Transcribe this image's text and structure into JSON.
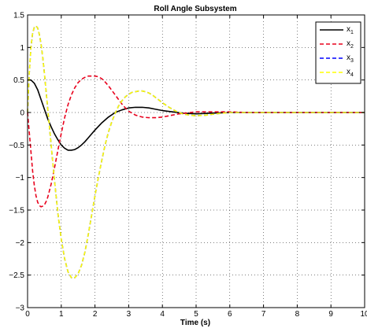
{
  "chart_data": {
    "type": "line",
    "title": "Roll Angle Subsystem",
    "xlabel": "Time (s)",
    "ylabel": "",
    "xlim": [
      0,
      10
    ],
    "ylim": [
      -3,
      1.5
    ],
    "grid": true,
    "legend": "top-right",
    "x_ticks": [
      "0",
      "1",
      "2",
      "3",
      "4",
      "5",
      "6",
      "7",
      "8",
      "9",
      "10"
    ],
    "y_ticks": [
      "1.5",
      "1",
      "0.5",
      "0",
      "−0.5",
      "−1",
      "−1.5",
      "−2",
      "−2.5",
      "−3"
    ],
    "series": [
      {
        "name": "x1",
        "legend_main": "x",
        "legend_sub": "1",
        "color": "#000000",
        "dash": "solid",
        "points": [
          [
            0,
            0.5
          ],
          [
            0.1,
            0.5
          ],
          [
            0.2,
            0.45
          ],
          [
            0.3,
            0.35
          ],
          [
            0.4,
            0.2
          ],
          [
            0.5,
            0.05
          ],
          [
            0.6,
            -0.1
          ],
          [
            0.7,
            -0.22
          ],
          [
            0.8,
            -0.33
          ],
          [
            0.9,
            -0.42
          ],
          [
            1.0,
            -0.5
          ],
          [
            1.1,
            -0.55
          ],
          [
            1.2,
            -0.58
          ],
          [
            1.3,
            -0.58
          ],
          [
            1.4,
            -0.57
          ],
          [
            1.5,
            -0.54
          ],
          [
            1.6,
            -0.5
          ],
          [
            1.7,
            -0.45
          ],
          [
            1.8,
            -0.39
          ],
          [
            1.9,
            -0.33
          ],
          [
            2.0,
            -0.27
          ],
          [
            2.2,
            -0.16
          ],
          [
            2.4,
            -0.07
          ],
          [
            2.6,
            0.0
          ],
          [
            2.8,
            0.04
          ],
          [
            3.0,
            0.07
          ],
          [
            3.2,
            0.08
          ],
          [
            3.4,
            0.08
          ],
          [
            3.6,
            0.07
          ],
          [
            3.8,
            0.05
          ],
          [
            4.0,
            0.03
          ],
          [
            4.3,
            0.01
          ],
          [
            4.6,
            -0.01
          ],
          [
            5.0,
            -0.02
          ],
          [
            5.5,
            -0.01
          ],
          [
            6.0,
            0.0
          ],
          [
            7.0,
            0.0
          ],
          [
            8.0,
            0.0
          ],
          [
            9.0,
            0.0
          ],
          [
            10.0,
            0.0
          ]
        ]
      },
      {
        "name": "x2",
        "legend_main": "x",
        "legend_sub": "2",
        "color": "#e8001c",
        "dash": "dashed",
        "points": [
          [
            0,
            0.0
          ],
          [
            0.05,
            -0.3
          ],
          [
            0.1,
            -0.6
          ],
          [
            0.15,
            -0.9
          ],
          [
            0.2,
            -1.12
          ],
          [
            0.25,
            -1.28
          ],
          [
            0.3,
            -1.38
          ],
          [
            0.35,
            -1.43
          ],
          [
            0.4,
            -1.45
          ],
          [
            0.45,
            -1.44
          ],
          [
            0.5,
            -1.42
          ],
          [
            0.55,
            -1.37
          ],
          [
            0.6,
            -1.3
          ],
          [
            0.7,
            -1.1
          ],
          [
            0.8,
            -0.85
          ],
          [
            0.9,
            -0.58
          ],
          [
            1.0,
            -0.32
          ],
          [
            1.1,
            -0.08
          ],
          [
            1.2,
            0.12
          ],
          [
            1.3,
            0.27
          ],
          [
            1.4,
            0.38
          ],
          [
            1.5,
            0.46
          ],
          [
            1.6,
            0.51
          ],
          [
            1.7,
            0.54
          ],
          [
            1.8,
            0.56
          ],
          [
            1.9,
            0.56
          ],
          [
            2.0,
            0.56
          ],
          [
            2.1,
            0.55
          ],
          [
            2.2,
            0.52
          ],
          [
            2.3,
            0.47
          ],
          [
            2.4,
            0.41
          ],
          [
            2.5,
            0.34
          ],
          [
            2.6,
            0.27
          ],
          [
            2.7,
            0.2
          ],
          [
            2.8,
            0.13
          ],
          [
            2.9,
            0.07
          ],
          [
            3.0,
            0.02
          ],
          [
            3.2,
            -0.04
          ],
          [
            3.4,
            -0.07
          ],
          [
            3.6,
            -0.08
          ],
          [
            3.8,
            -0.08
          ],
          [
            4.0,
            -0.07
          ],
          [
            4.2,
            -0.05
          ],
          [
            4.5,
            -0.02
          ],
          [
            5.0,
            0.01
          ],
          [
            5.5,
            0.01
          ],
          [
            6.0,
            0.01
          ],
          [
            6.5,
            0.0
          ],
          [
            7.0,
            0.0
          ],
          [
            8.0,
            0.0
          ],
          [
            9.0,
            0.0
          ],
          [
            10.0,
            0.0
          ]
        ]
      },
      {
        "name": "x3",
        "legend_main": "x",
        "legend_sub": "3",
        "color": "#0000ff",
        "dash": "dashed",
        "points": [
          [
            0,
            0.0
          ],
          [
            0.05,
            0.6
          ],
          [
            0.1,
            1.0
          ],
          [
            0.15,
            1.22
          ],
          [
            0.2,
            1.31
          ],
          [
            0.25,
            1.33
          ],
          [
            0.3,
            1.3
          ],
          [
            0.35,
            1.2
          ],
          [
            0.4,
            1.05
          ],
          [
            0.45,
            0.85
          ],
          [
            0.5,
            0.6
          ],
          [
            0.6,
            0.05
          ],
          [
            0.7,
            -0.5
          ],
          [
            0.8,
            -1.05
          ],
          [
            0.9,
            -1.55
          ],
          [
            1.0,
            -1.95
          ],
          [
            1.1,
            -2.25
          ],
          [
            1.2,
            -2.45
          ],
          [
            1.3,
            -2.54
          ],
          [
            1.35,
            -2.55
          ],
          [
            1.4,
            -2.54
          ],
          [
            1.5,
            -2.48
          ],
          [
            1.6,
            -2.35
          ],
          [
            1.7,
            -2.15
          ],
          [
            1.8,
            -1.88
          ],
          [
            1.9,
            -1.58
          ],
          [
            2.0,
            -1.28
          ],
          [
            2.1,
            -1.0
          ],
          [
            2.2,
            -0.74
          ],
          [
            2.3,
            -0.5
          ],
          [
            2.4,
            -0.3
          ],
          [
            2.5,
            -0.14
          ],
          [
            2.6,
            -0.01
          ],
          [
            2.7,
            0.1
          ],
          [
            2.8,
            0.18
          ],
          [
            2.9,
            0.24
          ],
          [
            3.0,
            0.28
          ],
          [
            3.1,
            0.31
          ],
          [
            3.2,
            0.32
          ],
          [
            3.3,
            0.33
          ],
          [
            3.4,
            0.33
          ],
          [
            3.5,
            0.32
          ],
          [
            3.6,
            0.3
          ],
          [
            3.7,
            0.27
          ],
          [
            3.8,
            0.23
          ],
          [
            3.9,
            0.19
          ],
          [
            4.0,
            0.15
          ],
          [
            4.2,
            0.08
          ],
          [
            4.4,
            0.02
          ],
          [
            4.6,
            -0.02
          ],
          [
            4.8,
            -0.04
          ],
          [
            5.0,
            -0.05
          ],
          [
            5.3,
            -0.04
          ],
          [
            5.6,
            -0.02
          ],
          [
            6.0,
            0.0
          ],
          [
            7.0,
            0.0
          ],
          [
            8.0,
            0.0
          ],
          [
            9.0,
            0.0
          ],
          [
            10.0,
            0.0
          ]
        ]
      },
      {
        "name": "x4",
        "legend_main": "x",
        "legend_sub": "4",
        "color": "#ffff00",
        "dash": "dashed",
        "points": [
          [
            0,
            0.0
          ],
          [
            0.05,
            0.6
          ],
          [
            0.1,
            1.0
          ],
          [
            0.15,
            1.22
          ],
          [
            0.2,
            1.31
          ],
          [
            0.25,
            1.33
          ],
          [
            0.3,
            1.3
          ],
          [
            0.35,
            1.2
          ],
          [
            0.4,
            1.05
          ],
          [
            0.45,
            0.85
          ],
          [
            0.5,
            0.6
          ],
          [
            0.6,
            0.05
          ],
          [
            0.7,
            -0.5
          ],
          [
            0.8,
            -1.05
          ],
          [
            0.9,
            -1.55
          ],
          [
            1.0,
            -1.95
          ],
          [
            1.1,
            -2.25
          ],
          [
            1.2,
            -2.45
          ],
          [
            1.3,
            -2.54
          ],
          [
            1.35,
            -2.55
          ],
          [
            1.4,
            -2.54
          ],
          [
            1.5,
            -2.48
          ],
          [
            1.6,
            -2.35
          ],
          [
            1.7,
            -2.15
          ],
          [
            1.8,
            -1.88
          ],
          [
            1.9,
            -1.58
          ],
          [
            2.0,
            -1.28
          ],
          [
            2.1,
            -1.0
          ],
          [
            2.2,
            -0.74
          ],
          [
            2.3,
            -0.5
          ],
          [
            2.4,
            -0.3
          ],
          [
            2.5,
            -0.14
          ],
          [
            2.6,
            -0.01
          ],
          [
            2.7,
            0.1
          ],
          [
            2.8,
            0.18
          ],
          [
            2.9,
            0.24
          ],
          [
            3.0,
            0.28
          ],
          [
            3.1,
            0.31
          ],
          [
            3.2,
            0.32
          ],
          [
            3.3,
            0.33
          ],
          [
            3.4,
            0.33
          ],
          [
            3.5,
            0.32
          ],
          [
            3.6,
            0.3
          ],
          [
            3.7,
            0.27
          ],
          [
            3.8,
            0.23
          ],
          [
            3.9,
            0.19
          ],
          [
            4.0,
            0.15
          ],
          [
            4.2,
            0.08
          ],
          [
            4.4,
            0.02
          ],
          [
            4.6,
            -0.02
          ],
          [
            4.8,
            -0.04
          ],
          [
            5.0,
            -0.05
          ],
          [
            5.3,
            -0.04
          ],
          [
            5.6,
            -0.02
          ],
          [
            6.0,
            0.0
          ],
          [
            7.0,
            0.0
          ],
          [
            8.0,
            0.0
          ],
          [
            9.0,
            0.0
          ],
          [
            10.0,
            0.0
          ]
        ]
      }
    ]
  }
}
